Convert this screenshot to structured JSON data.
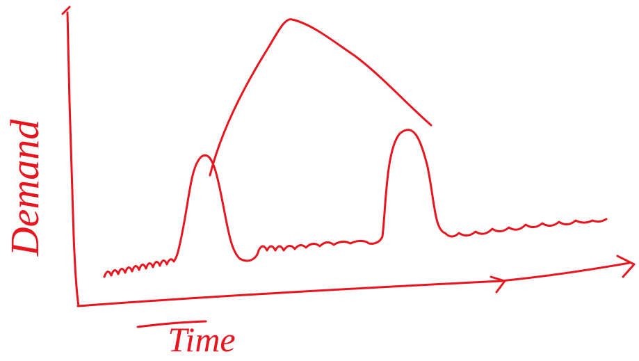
{
  "axes": {
    "y_label": "Demand",
    "x_label": "Time"
  }
}
